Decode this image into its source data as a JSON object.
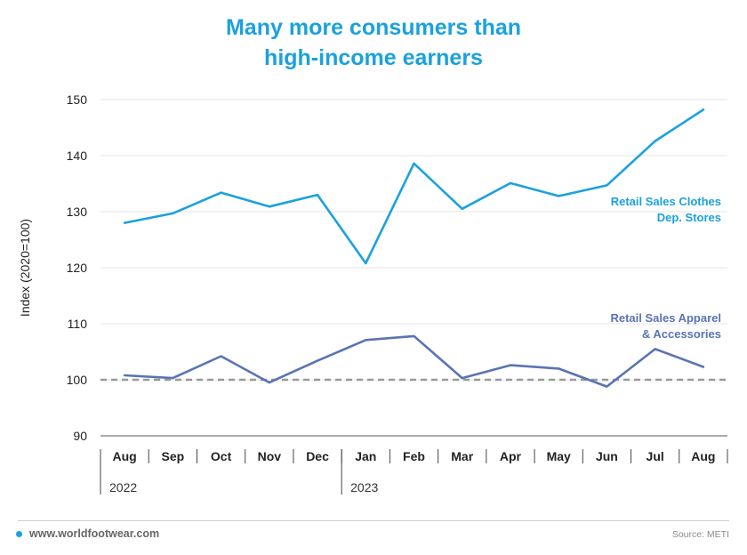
{
  "header": {
    "title_line1": "Many more consumers than",
    "title_line2": "high-income earners"
  },
  "chart_data": {
    "type": "line",
    "title": "Many more consumers than high-income earners",
    "ylabel": "Index (2020=100)",
    "xlabel": "",
    "ylim": [
      90,
      150
    ],
    "yticks": [
      90,
      100,
      110,
      120,
      130,
      140,
      150
    ],
    "categories": [
      "Aug",
      "Sep",
      "Oct",
      "Nov",
      "Dec",
      "Jan",
      "Feb",
      "Mar",
      "Apr",
      "May",
      "Jun",
      "Jul",
      "Aug"
    ],
    "year_labels": [
      {
        "label": "2022",
        "start_index": 0
      },
      {
        "label": "2023",
        "start_index": 5
      }
    ],
    "reference_line": 100,
    "grid": "horizontal",
    "series": [
      {
        "name": "Retail Sales Clothes Dep. Stores",
        "label_lines": [
          "Retail Sales Clothes",
          "Dep. Stores"
        ],
        "color": "#1ba1de",
        "values": [
          128.0,
          129.7,
          133.4,
          130.9,
          133.0,
          120.8,
          138.6,
          130.5,
          135.1,
          132.8,
          134.7,
          142.6,
          148.2
        ]
      },
      {
        "name": "Retail Sales Apparel & Accessories",
        "label_lines": [
          "Retail Sales Apparel",
          "& Accessories"
        ],
        "color": "#5a73b4",
        "values": [
          100.8,
          100.3,
          104.2,
          99.5,
          103.4,
          107.1,
          107.8,
          100.3,
          102.6,
          102.0,
          98.8,
          105.5,
          102.3
        ]
      }
    ]
  },
  "footer": {
    "website": "www.worldfootwear.com",
    "source": "Source: METI"
  },
  "colors": {
    "accent": "#1ba1de",
    "secondary": "#5a73b4",
    "reference": "#999999"
  }
}
